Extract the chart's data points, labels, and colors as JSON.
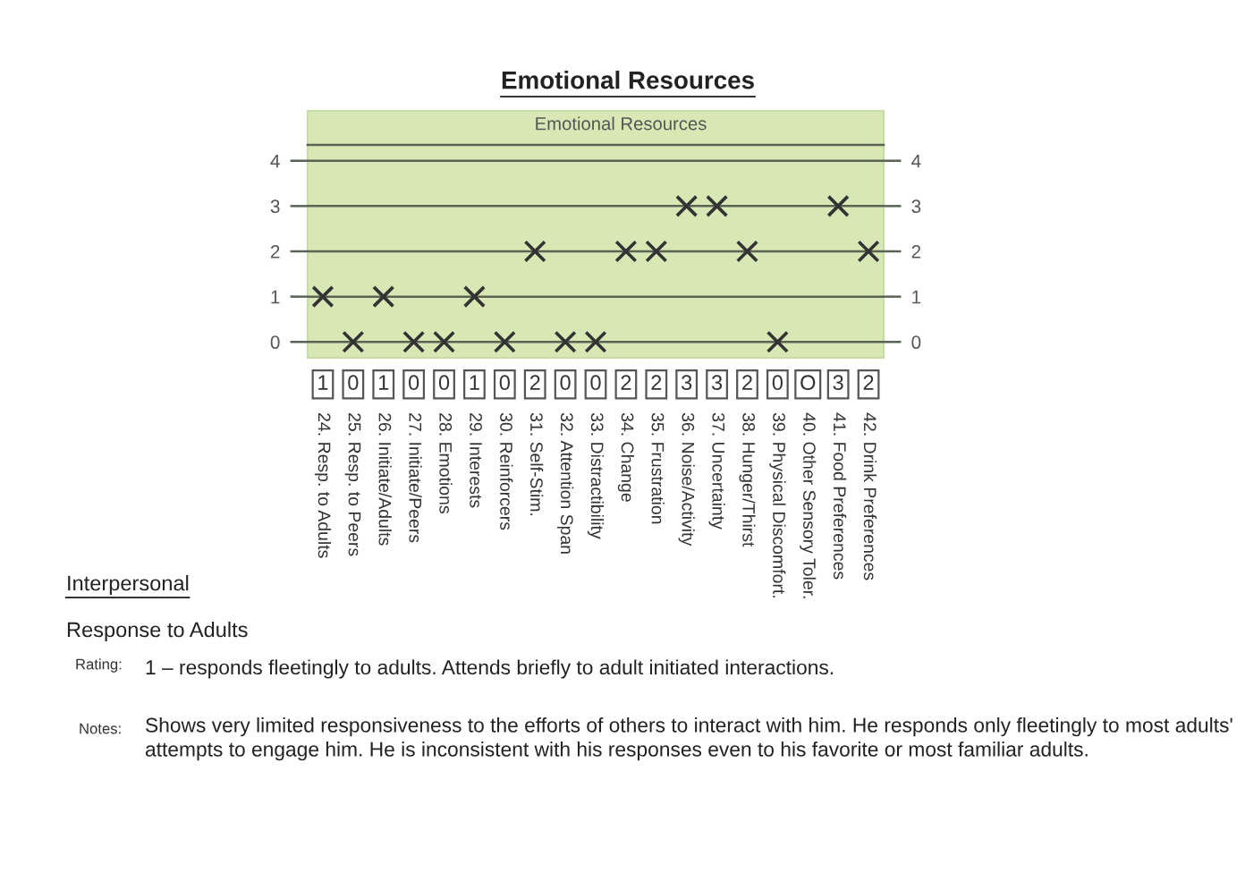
{
  "chart_data": {
    "type": "scatter",
    "title": "Emotional Resources",
    "subtitle": "Emotional Resources",
    "categories": [
      "24. Resp. to Adults",
      "25. Resp. to Peers",
      "26. Initiate/Adults",
      "27. Initiate/Peers",
      "28. Emotions",
      "29. Interests",
      "30. Reinforcers",
      "31. Self-Stim.",
      "32. Attention Span",
      "33. Distractibility",
      "34. Change",
      "35. Frustration",
      "36. Noise/Activity",
      "37. Uncertainty",
      "38. Hunger/Thirst",
      "39. Physical Discomfort.",
      "40. Other Sensory Toler.",
      "41. Food Preferences",
      "42. Drink Preferences"
    ],
    "values": [
      1,
      0,
      1,
      0,
      0,
      1,
      0,
      2,
      0,
      0,
      2,
      2,
      3,
      3,
      2,
      0,
      null,
      3,
      2
    ],
    "value_labels": [
      "1",
      "0",
      "1",
      "0",
      "0",
      "1",
      "0",
      "2",
      "0",
      "0",
      "2",
      "2",
      "3",
      "3",
      "2",
      "0",
      "O",
      "3",
      "2"
    ],
    "color": "#333333",
    "marker": "cross",
    "ylim": [
      -0.35,
      4.35
    ],
    "yticks": [
      0,
      1,
      2,
      3,
      4
    ],
    "y2lim": [
      -0.35,
      4.35
    ],
    "y2ticks": [
      0,
      1,
      2,
      3,
      4
    ],
    "grid": "y",
    "annotations": [
      "Interpersonal",
      "Response to Adults",
      "Rating:",
      "1 – responds fleetingly to adults. Attends briefly to adult initiated interactions.",
      "Notes:",
      "Shows very limited responsiveness to the efforts of others to interact with him. He responds only fleetingly to most adults' attempts to engage him. He is inconsistent with his responses even to his favorite or most familiar adults."
    ]
  }
}
